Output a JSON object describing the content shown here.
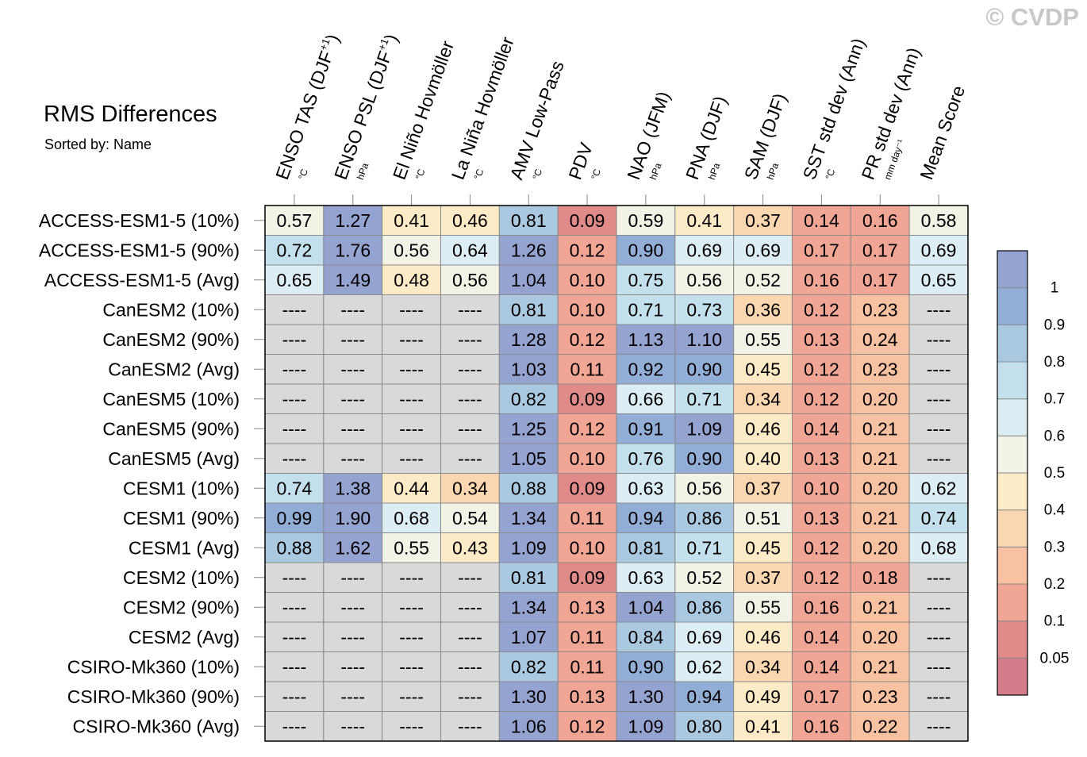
{
  "watermark": "© CVDP",
  "chart_data": {
    "type": "heatmap",
    "title": "RMS Differences",
    "subtitle": "Sorted by: Name",
    "columns": [
      {
        "label": "ENSO TAS (DJF",
        "sup": "+1",
        "suffix": ")",
        "unit": "°C"
      },
      {
        "label": "ENSO PSL (DJF",
        "sup": "+1",
        "suffix": ")",
        "unit": "hPa"
      },
      {
        "label": "El Niño Hovmöller",
        "sup": "",
        "suffix": "",
        "unit": "°C"
      },
      {
        "label": "La Niña Hovmöller",
        "sup": "",
        "suffix": "",
        "unit": "°C"
      },
      {
        "label": "AMV Low-Pass",
        "sup": "",
        "suffix": "",
        "unit": "°C"
      },
      {
        "label": "PDV",
        "sup": "",
        "suffix": "",
        "unit": "°C"
      },
      {
        "label": "NAO (JFM)",
        "sup": "",
        "suffix": "",
        "unit": "hPa"
      },
      {
        "label": "PNA (DJF)",
        "sup": "",
        "suffix": "",
        "unit": "hPa"
      },
      {
        "label": "SAM (DJF)",
        "sup": "",
        "suffix": "",
        "unit": "hPa"
      },
      {
        "label": "SST std dev (Ann)",
        "sup": "",
        "suffix": "",
        "unit": "°C"
      },
      {
        "label": "PR std dev (Ann)",
        "sup": "",
        "suffix": "",
        "unit": "mm day⁻¹"
      },
      {
        "label": "Mean Score",
        "sup": "",
        "suffix": "",
        "unit": ""
      }
    ],
    "rows": [
      "ACCESS-ESM1-5 (10%)",
      "ACCESS-ESM1-5 (90%)",
      "ACCESS-ESM1-5 (Avg)",
      "CanESM2 (10%)",
      "CanESM2 (90%)",
      "CanESM2 (Avg)",
      "CanESM5 (10%)",
      "CanESM5 (90%)",
      "CanESM5 (Avg)",
      "CESM1 (10%)",
      "CESM1 (90%)",
      "CESM1 (Avg)",
      "CESM2 (10%)",
      "CESM2 (90%)",
      "CESM2 (Avg)",
      "CSIRO-Mk360 (10%)",
      "CSIRO-Mk360 (90%)",
      "CSIRO-Mk360 (Avg)"
    ],
    "missing_text": "----",
    "missing_color": "#d9d9d9",
    "values": [
      [
        0.57,
        1.27,
        0.41,
        0.46,
        0.81,
        0.09,
        0.59,
        0.41,
        0.37,
        0.14,
        0.16,
        0.58
      ],
      [
        0.72,
        1.76,
        0.56,
        0.64,
        1.26,
        0.12,
        0.9,
        0.69,
        0.69,
        0.17,
        0.17,
        0.69
      ],
      [
        0.65,
        1.49,
        0.48,
        0.56,
        1.04,
        0.1,
        0.75,
        0.56,
        0.52,
        0.16,
        0.17,
        0.65
      ],
      [
        null,
        null,
        null,
        null,
        0.81,
        0.1,
        0.71,
        0.73,
        0.36,
        0.12,
        0.23,
        null
      ],
      [
        null,
        null,
        null,
        null,
        1.28,
        0.12,
        1.13,
        1.1,
        0.55,
        0.13,
        0.24,
        null
      ],
      [
        null,
        null,
        null,
        null,
        1.03,
        0.11,
        0.92,
        0.9,
        0.45,
        0.12,
        0.23,
        null
      ],
      [
        null,
        null,
        null,
        null,
        0.82,
        0.09,
        0.66,
        0.71,
        0.34,
        0.12,
        0.2,
        null
      ],
      [
        null,
        null,
        null,
        null,
        1.25,
        0.12,
        0.91,
        1.09,
        0.46,
        0.14,
        0.21,
        null
      ],
      [
        null,
        null,
        null,
        null,
        1.05,
        0.1,
        0.76,
        0.9,
        0.4,
        0.13,
        0.21,
        null
      ],
      [
        0.74,
        1.38,
        0.44,
        0.34,
        0.88,
        0.09,
        0.63,
        0.56,
        0.37,
        0.1,
        0.2,
        0.62
      ],
      [
        0.99,
        1.9,
        0.68,
        0.54,
        1.34,
        0.11,
        0.94,
        0.86,
        0.51,
        0.13,
        0.21,
        0.74
      ],
      [
        0.88,
        1.62,
        0.55,
        0.43,
        1.09,
        0.1,
        0.81,
        0.71,
        0.45,
        0.12,
        0.2,
        0.68
      ],
      [
        null,
        null,
        null,
        null,
        0.81,
        0.09,
        0.63,
        0.52,
        0.37,
        0.12,
        0.18,
        null
      ],
      [
        null,
        null,
        null,
        null,
        1.34,
        0.13,
        1.04,
        0.86,
        0.55,
        0.16,
        0.21,
        null
      ],
      [
        null,
        null,
        null,
        null,
        1.07,
        0.11,
        0.84,
        0.69,
        0.46,
        0.14,
        0.2,
        null
      ],
      [
        null,
        null,
        null,
        null,
        0.82,
        0.11,
        0.9,
        0.62,
        0.34,
        0.14,
        0.21,
        null
      ],
      [
        null,
        null,
        null,
        null,
        1.3,
        0.13,
        1.3,
        0.94,
        0.49,
        0.17,
        0.23,
        null
      ],
      [
        null,
        null,
        null,
        null,
        1.06,
        0.12,
        1.09,
        0.8,
        0.41,
        0.16,
        0.22,
        null
      ]
    ],
    "colorbar": {
      "thresholds": [
        0.05,
        0.1,
        0.2,
        0.3,
        0.4,
        0.5,
        0.6,
        0.7,
        0.8,
        0.9,
        1
      ],
      "labels": [
        "0.05",
        "0.1",
        "0.2",
        "0.3",
        "0.4",
        "0.5",
        "0.6",
        "0.7",
        "0.8",
        "0.9",
        "1"
      ],
      "colors": [
        "#d47b8b",
        "#e08a8a",
        "#f0a595",
        "#f8c1a2",
        "#fad7b1",
        "#fdebc8",
        "#f3f2e6",
        "#dcedf4",
        "#c4e0ed",
        "#aac9e0",
        "#92aed6",
        "#94a3d0"
      ]
    }
  }
}
